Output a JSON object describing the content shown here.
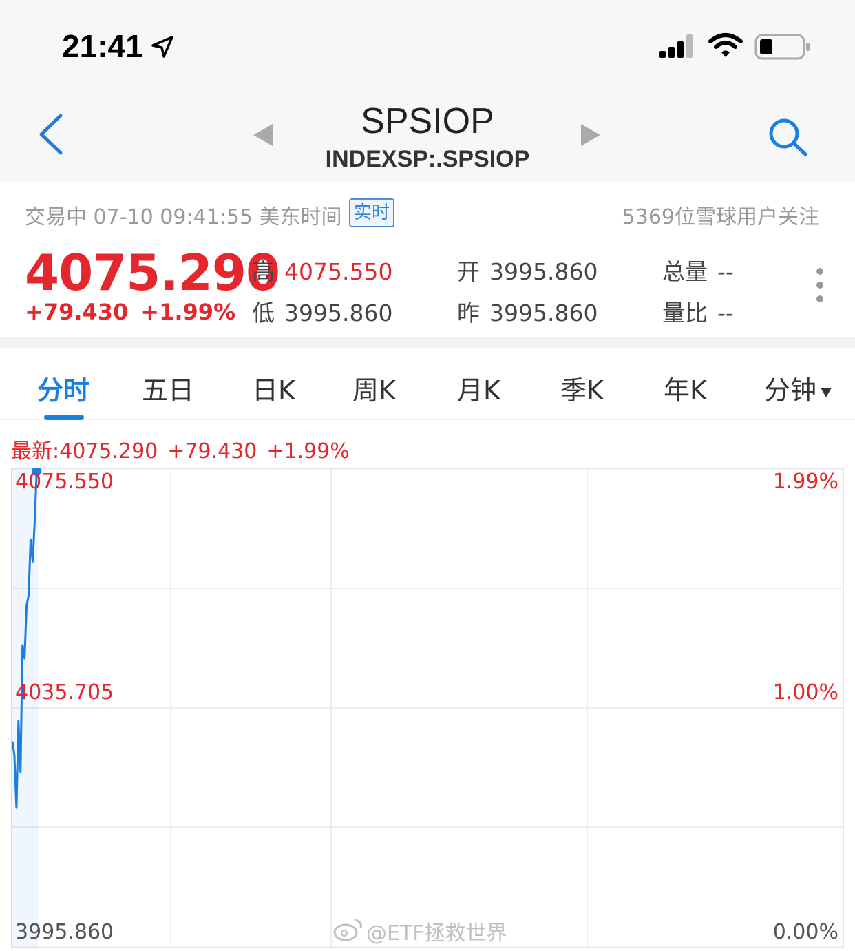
{
  "status_bar": {
    "time": "21:41"
  },
  "nav": {
    "title": "SPSIOP",
    "subtitle": "INDEXSP:.SPSIOP"
  },
  "info": {
    "trade_status": "交易中 07-10 09:41:55 美东时间",
    "realtime_badge": "实时",
    "followers": "5369位雪球用户关注"
  },
  "quote": {
    "price": "4075.290",
    "change": "+79.430",
    "change_pct": "+1.99%",
    "stats": [
      {
        "label": "高",
        "value": "4075.550",
        "red": true
      },
      {
        "label": "低",
        "value": "3995.860",
        "red": false
      },
      {
        "label": "开",
        "value": "3995.860",
        "red": false
      },
      {
        "label": "昨",
        "value": "3995.860",
        "red": false
      },
      {
        "label": "总量",
        "value": "--",
        "red": false
      },
      {
        "label": "量比",
        "value": "--",
        "red": false
      }
    ]
  },
  "tabs": [
    {
      "label": "分时"
    },
    {
      "label": "五日"
    },
    {
      "label": "日K"
    },
    {
      "label": "周K"
    },
    {
      "label": "月K"
    },
    {
      "label": "季K"
    },
    {
      "label": "年K"
    },
    {
      "label": "分钟"
    }
  ],
  "latest": {
    "prefix": "最新:4075.290",
    "change": "+79.430",
    "pct": "+1.99%"
  },
  "chart_data": {
    "type": "line",
    "title": "分时",
    "y_left_labels": [
      "4075.550",
      "4035.705",
      "3995.860"
    ],
    "y_right_labels": [
      "1.99%",
      "1.00%",
      "0.00%"
    ],
    "ylim": [
      3995.86,
      4075.55
    ],
    "series": [
      {
        "name": "SPSIOP",
        "color": "#1a7fe0",
        "values": [
          4030.1,
          4027.8,
          4019.0,
          4033.5,
          4025.0,
          4046.2,
          4044.0,
          4052.8,
          4054.5,
          4063.9,
          4060.2,
          4066.8,
          4075.55
        ]
      }
    ],
    "x_slots_total": 390
  },
  "watermark": "@ETF拯救世界",
  "colors": {
    "up": "#e5262c",
    "accent": "#1a7fe0"
  }
}
